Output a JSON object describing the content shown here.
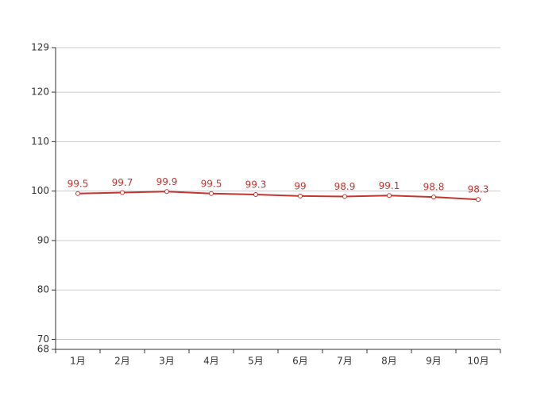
{
  "chart_data": {
    "type": "line",
    "categories": [
      "1月",
      "2月",
      "3月",
      "4月",
      "5月",
      "6月",
      "7月",
      "8月",
      "9月",
      "10月"
    ],
    "series": [
      {
        "name": "value",
        "color": "#c23531",
        "values": [
          99.5,
          99.7,
          99.9,
          99.5,
          99.3,
          99,
          98.9,
          99.1,
          98.8,
          98.3
        ]
      }
    ],
    "ylim": [
      68,
      129
    ],
    "yticks": [
      68,
      70,
      80,
      90,
      100,
      110,
      120,
      129
    ],
    "grid": true
  }
}
